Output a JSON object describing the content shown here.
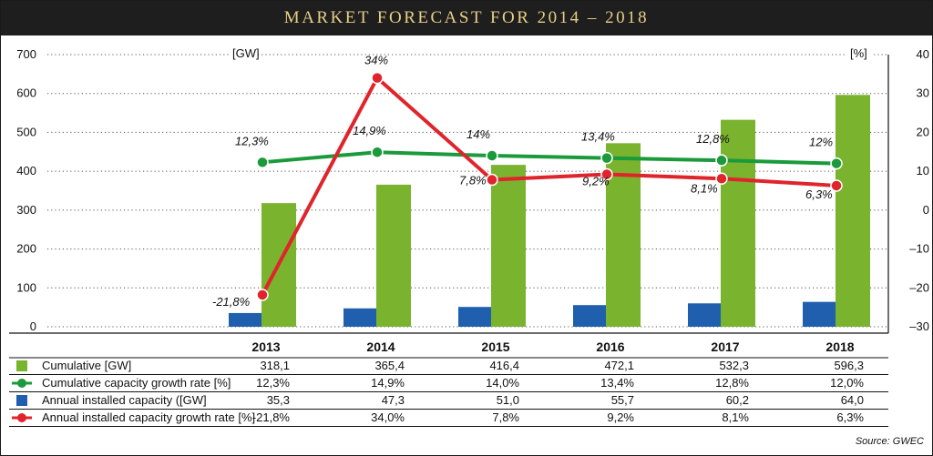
{
  "title": "MARKET FORECAST FOR 2014 – 2018",
  "source": "Source: GWEC",
  "colors": {
    "cumulative": "#7ab32e",
    "annual": "#1f5fad",
    "cumulative_growth": "#1a9a3a",
    "annual_growth": "#e0242b",
    "title_bg": "#1e1e1e",
    "title_text": "#e6cf86"
  },
  "chart_data": {
    "type": "bar",
    "categories": [
      "2013",
      "2014",
      "2015",
      "2016",
      "2017",
      "2018"
    ],
    "left_axis": {
      "unit": "[GW]",
      "ylim": [
        0,
        700
      ],
      "ticks": [
        0,
        100,
        200,
        300,
        400,
        500,
        600,
        700
      ],
      "tick_labels": [
        "0",
        "100",
        "200",
        "300",
        "400",
        "500",
        "600",
        "700"
      ]
    },
    "right_axis": {
      "unit": "[%]",
      "ylim": [
        -30,
        40
      ],
      "ticks": [
        -30,
        -20,
        -10,
        0,
        10,
        20,
        30,
        40
      ],
      "tick_labels": [
        "–30",
        "–20",
        "–10",
        "0",
        "10",
        "20",
        "30",
        "40"
      ]
    },
    "grid": "dotted horizontal",
    "series": [
      {
        "name": "Cumulative [GW]",
        "kind": "bar",
        "axis": "left",
        "color": "#7ab32e",
        "values": [
          318.1,
          365.4,
          416.4,
          472.1,
          532.3,
          596.3
        ]
      },
      {
        "name": "Cumulative capacity growth rate [%]",
        "kind": "line",
        "axis": "right",
        "color": "#1a9a3a",
        "values": [
          12.3,
          14.9,
          14.0,
          13.4,
          12.8,
          12.0
        ],
        "point_labels": [
          "12,3%",
          "14,9%",
          "14%",
          "13,4%",
          "12,8%",
          "12%"
        ]
      },
      {
        "name": "Annual installed capacity ([GW]",
        "kind": "bar",
        "axis": "left",
        "color": "#1f5fad",
        "values": [
          35.3,
          47.3,
          51.0,
          55.7,
          60.2,
          64.0
        ]
      },
      {
        "name": "Annual installed capacity growth rate [%]",
        "kind": "line",
        "axis": "right",
        "color": "#e0242b",
        "values": [
          -21.8,
          34.0,
          7.8,
          9.2,
          8.1,
          6.3
        ],
        "point_labels": [
          "-21,8%",
          "34%",
          "7,8%",
          "9,2%",
          "8,1%",
          "6,3%"
        ]
      }
    ],
    "table": {
      "rows": [
        {
          "label": "Cumulative [GW]",
          "marker": "square",
          "color": "#7ab32e",
          "cells": [
            "318,1",
            "365,4",
            "416,4",
            "472,1",
            "532,3",
            "596,3"
          ]
        },
        {
          "label": "Cumulative capacity growth rate [%]",
          "marker": "line-dot",
          "color": "#1a9a3a",
          "cells": [
            "12,3%",
            "14,9%",
            "14,0%",
            "13,4%",
            "12,8%",
            "12,0%"
          ]
        },
        {
          "label": "Annual installed capacity ([GW]",
          "marker": "square",
          "color": "#1f5fad",
          "cells": [
            "35,3",
            "47,3",
            "51,0",
            "55,7",
            "60,2",
            "64,0"
          ]
        },
        {
          "label": "Annual installed capacity growth rate [%]",
          "marker": "line-dot",
          "color": "#e0242b",
          "cells": [
            "-21,8%",
            "34,0%",
            "7,8%",
            "9,2%",
            "8,1%",
            "6,3%"
          ]
        }
      ]
    }
  }
}
